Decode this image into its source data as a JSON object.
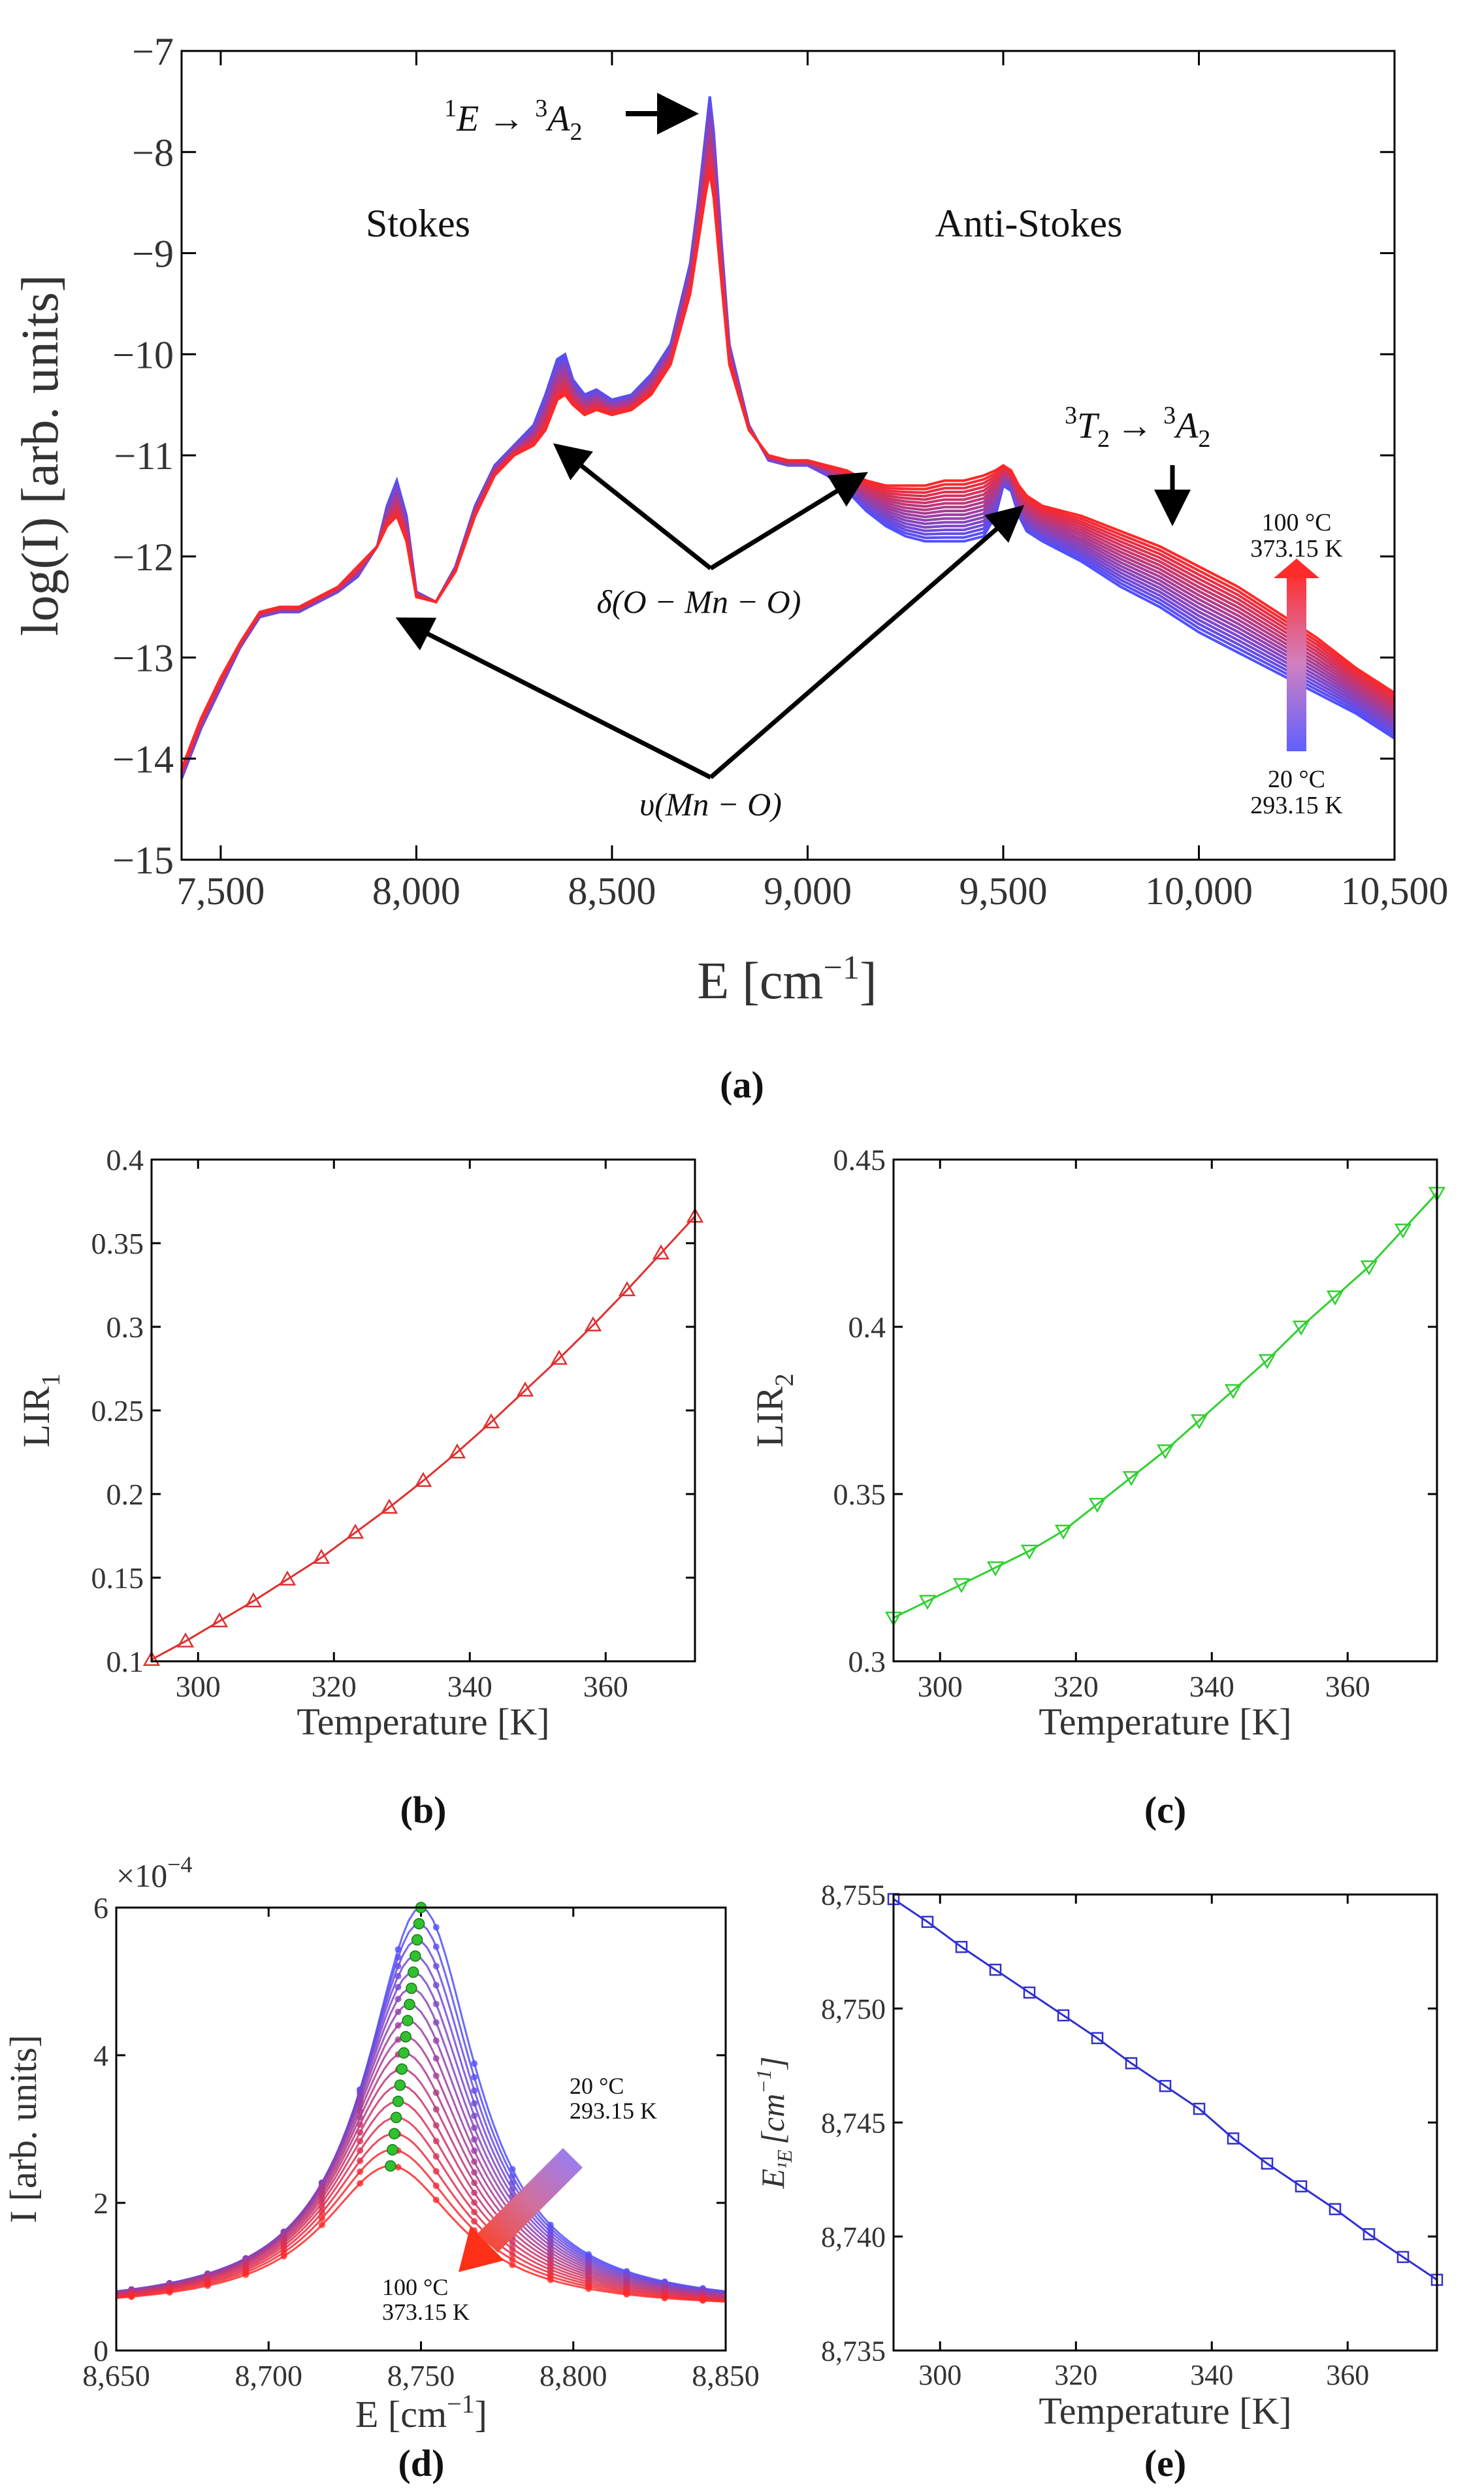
{
  "chart_data": [
    {
      "id": "a",
      "type": "line",
      "caption": "(a)",
      "xlabel": "E [cm",
      "xlabel_sup": "−1",
      "xlabel_close": "]",
      "ylabel": "log(I) [arb. units]",
      "xlim": [
        7400,
        10500
      ],
      "ylim": [
        -15,
        -7
      ],
      "xticks": [
        7500,
        8000,
        8500,
        9000,
        9500,
        10000,
        10500
      ],
      "xtick_labels": [
        "7,500",
        "8,000",
        "8,500",
        "9,000",
        "9,500",
        "10,000",
        "10,500"
      ],
      "yticks": [
        -15,
        -14,
        -13,
        -12,
        -11,
        -10,
        -9,
        -8,
        -7
      ],
      "ytick_labels": [
        "−15",
        "−14",
        "−13",
        "−12",
        "−11",
        "−10",
        "−9",
        "−8",
        "−7"
      ],
      "series_count": 17,
      "temperature_range_K": [
        293.15,
        373.15
      ],
      "curves": {
        "x": [
          7400,
          7450,
          7500,
          7550,
          7600,
          7650,
          7700,
          7750,
          7800,
          7850,
          7900,
          7925,
          7950,
          7975,
          8000,
          8050,
          8100,
          8150,
          8200,
          8250,
          8300,
          8330,
          8360,
          8380,
          8400,
          8430,
          8460,
          8500,
          8550,
          8600,
          8650,
          8700,
          8720,
          8740,
          8750,
          8760,
          8780,
          8800,
          8850,
          8900,
          8950,
          9000,
          9050,
          9100,
          9150,
          9200,
          9250,
          9300,
          9350,
          9400,
          9450,
          9480,
          9500,
          9520,
          9540,
          9560,
          9600,
          9700,
          9800,
          9900,
          10000,
          10100,
          10200,
          10300,
          10400,
          10500
        ],
        "cold": [
          -14.2,
          -13.7,
          -13.3,
          -12.9,
          -12.6,
          -12.55,
          -12.55,
          -12.45,
          -12.35,
          -12.2,
          -11.9,
          -11.5,
          -11.25,
          -11.6,
          -12.35,
          -12.45,
          -12.1,
          -11.5,
          -11.1,
          -10.9,
          -10.7,
          -10.4,
          -10.05,
          -10.0,
          -10.25,
          -10.4,
          -10.35,
          -10.45,
          -10.4,
          -10.2,
          -9.9,
          -9.1,
          -8.5,
          -7.8,
          -7.45,
          -7.8,
          -8.9,
          -9.9,
          -10.7,
          -11.05,
          -11.1,
          -11.1,
          -11.2,
          -11.35,
          -11.55,
          -11.7,
          -11.8,
          -11.85,
          -11.85,
          -11.85,
          -11.8,
          -11.6,
          -11.3,
          -11.35,
          -11.6,
          -11.75,
          -11.85,
          -12.05,
          -12.3,
          -12.5,
          -12.75,
          -12.95,
          -13.15,
          -13.35,
          -13.55,
          -13.8
        ],
        "hot": [
          -14.1,
          -13.6,
          -13.2,
          -12.85,
          -12.55,
          -12.5,
          -12.5,
          -12.4,
          -12.3,
          -12.1,
          -11.9,
          -11.7,
          -11.6,
          -11.85,
          -12.4,
          -12.45,
          -12.15,
          -11.6,
          -11.2,
          -11.0,
          -10.9,
          -10.75,
          -10.45,
          -10.4,
          -10.5,
          -10.6,
          -10.55,
          -10.6,
          -10.55,
          -10.4,
          -10.1,
          -9.4,
          -8.9,
          -8.4,
          -8.2,
          -8.45,
          -9.3,
          -10.1,
          -10.75,
          -11.0,
          -11.05,
          -11.05,
          -11.1,
          -11.15,
          -11.25,
          -11.3,
          -11.3,
          -11.3,
          -11.25,
          -11.25,
          -11.2,
          -11.15,
          -11.1,
          -11.15,
          -11.3,
          -11.4,
          -11.5,
          -11.6,
          -11.75,
          -11.9,
          -12.1,
          -12.3,
          -12.55,
          -12.8,
          -13.1,
          -13.35
        ]
      },
      "annotations": {
        "stokes": "Stokes",
        "anti_stokes": "Anti-Stokes",
        "trans1_a": "1",
        "trans1_b": "E →",
        "trans1_c": "3",
        "trans1_d": "A",
        "trans1_e": "2",
        "trans2_a": "3",
        "trans2_b": "T",
        "trans2_c": "2",
        "trans2_d": "→",
        "trans2_e": "3",
        "trans2_f": "A",
        "trans2_g": "2",
        "delta": "δ(O − Mn − O)",
        "nu": "υ(Mn − O)",
        "hot_c": "100 °C",
        "hot_k": "373.15 K",
        "cold_c": "20 °C",
        "cold_k": "293.15 K"
      }
    },
    {
      "id": "b",
      "type": "scatter",
      "caption": "(b)",
      "xlabel": "Temperature [K]",
      "ylabel": "LIR",
      "ylabel_sub": "1",
      "xlim": [
        293.15,
        373.15
      ],
      "ylim": [
        0.1,
        0.4
      ],
      "xticks": [
        300,
        320,
        340,
        360
      ],
      "yticks": [
        0.1,
        0.15,
        0.2,
        0.25,
        0.3,
        0.35,
        0.4
      ],
      "ytick_labels": [
        "0.1",
        "0.15",
        "0.2",
        "0.25",
        "0.3",
        "0.35",
        "0.4"
      ],
      "marker": "triangle-up",
      "color": "#e03030",
      "x": [
        293.15,
        298.15,
        303.15,
        308.15,
        313.15,
        318.15,
        323.15,
        328.15,
        333.15,
        338.15,
        343.15,
        348.15,
        353.15,
        358.15,
        363.15,
        368.15,
        373.15
      ],
      "y": [
        0.101,
        0.112,
        0.124,
        0.136,
        0.149,
        0.162,
        0.177,
        0.192,
        0.208,
        0.225,
        0.243,
        0.262,
        0.281,
        0.301,
        0.322,
        0.344,
        0.366
      ]
    },
    {
      "id": "c",
      "type": "scatter",
      "caption": "(c)",
      "xlabel": "Temperature [K]",
      "ylabel": "LIR",
      "ylabel_sub": "2",
      "xlim": [
        293.15,
        373.15
      ],
      "ylim": [
        0.3,
        0.45
      ],
      "xticks": [
        300,
        320,
        340,
        360
      ],
      "yticks": [
        0.3,
        0.35,
        0.4,
        0.45
      ],
      "ytick_labels": [
        "0.3",
        "0.35",
        "0.4",
        "0.45"
      ],
      "marker": "triangle-down",
      "color": "#30d030",
      "x": [
        293.15,
        298.15,
        303.15,
        308.15,
        313.15,
        318.15,
        323.15,
        328.15,
        333.15,
        338.15,
        343.15,
        348.15,
        353.15,
        358.15,
        363.15,
        368.15,
        373.15
      ],
      "y": [
        0.313,
        0.318,
        0.323,
        0.328,
        0.333,
        0.339,
        0.347,
        0.355,
        0.363,
        0.372,
        0.381,
        0.39,
        0.4,
        0.409,
        0.418,
        0.429,
        0.44
      ]
    },
    {
      "id": "d",
      "type": "line",
      "caption": "(d)",
      "xlabel": "E [cm",
      "xlabel_sup": "−1",
      "xlabel_close": "]",
      "ylabel": "I [arb. units]",
      "multiplier_base": "×10",
      "multiplier_exp": "−4",
      "xlim": [
        8650,
        8850
      ],
      "ylim": [
        0,
        6
      ],
      "xticks": [
        8650,
        8700,
        8750,
        8800,
        8850
      ],
      "xtick_labels": [
        "8,650",
        "8,700",
        "8,750",
        "8,800",
        "8,850"
      ],
      "yticks": [
        0,
        2,
        4,
        6
      ],
      "ytick_labels": [
        "0",
        "2",
        "4",
        "6"
      ],
      "series_count": 17,
      "peak_max": [
        6.0,
        2.5
      ],
      "peak_center": [
        8750,
        8740
      ],
      "peak_width": [
        22,
        27
      ],
      "baseline": 0.55,
      "annotations": {
        "cold_c": "20 °C",
        "cold_k": "293.15 K",
        "hot_c": "100 °C",
        "hot_k": "373.15 K"
      }
    },
    {
      "id": "e",
      "type": "line",
      "caption": "(e)",
      "xlabel": "Temperature [K]",
      "ylabel": "E",
      "ylabel_sub": "¹E",
      "ylabel_unit": "[cm",
      "ylabel_sup": "−1",
      "ylabel_close": "]",
      "xlim": [
        293.15,
        373.15
      ],
      "ylim": [
        8735,
        8755
      ],
      "xticks": [
        300,
        320,
        340,
        360
      ],
      "yticks": [
        8735,
        8740,
        8745,
        8750,
        8755
      ],
      "ytick_labels": [
        "8,735",
        "8,740",
        "8,745",
        "8,750",
        "8,755"
      ],
      "marker": "square",
      "color": "#3030d0",
      "x": [
        293.15,
        298.15,
        303.15,
        308.15,
        313.15,
        318.15,
        323.15,
        328.15,
        333.15,
        338.15,
        343.15,
        348.15,
        353.15,
        358.15,
        363.15,
        368.15,
        373.15
      ],
      "y": [
        8754.8,
        8753.8,
        8752.7,
        8751.7,
        8750.7,
        8749.7,
        8748.7,
        8747.6,
        8746.6,
        8745.6,
        8744.3,
        8743.2,
        8742.2,
        8741.2,
        8740.1,
        8739.1,
        8738.1
      ]
    }
  ]
}
